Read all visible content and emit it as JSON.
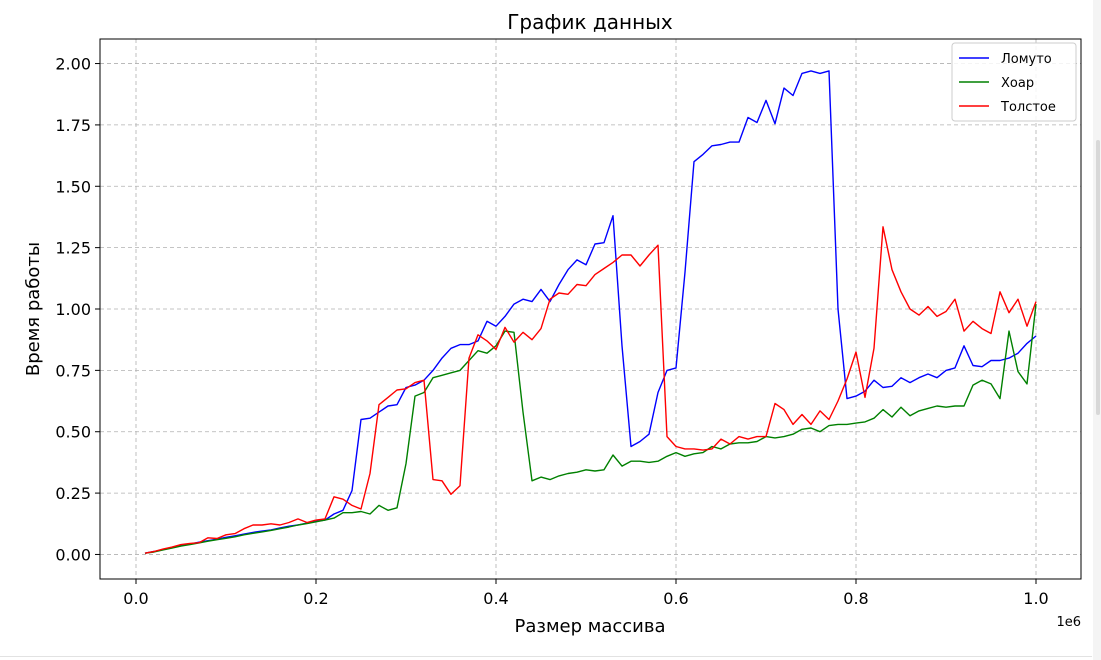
{
  "chart_data": {
    "type": "line",
    "title": "График данных",
    "xlabel": "Размер массива",
    "ylabel": "Время работы",
    "x_offset_label": "1e6",
    "xlim": [
      -0.04,
      1.05
    ],
    "ylim": [
      -0.1,
      2.1
    ],
    "x_ticks": [
      0.0,
      0.2,
      0.4,
      0.6,
      0.8,
      1.0
    ],
    "x_tick_labels": [
      "0.0",
      "0.2",
      "0.4",
      "0.6",
      "0.8",
      "1.0"
    ],
    "y_ticks": [
      0.0,
      0.25,
      0.5,
      0.75,
      1.0,
      1.25,
      1.5,
      1.75,
      2.0
    ],
    "y_tick_labels": [
      "0.00",
      "0.25",
      "0.50",
      "0.75",
      "1.00",
      "1.25",
      "1.50",
      "1.75",
      "2.00"
    ],
    "grid": true,
    "legend_position": "top-right",
    "x": [
      0.01,
      0.02,
      0.03,
      0.04,
      0.05,
      0.06,
      0.07,
      0.08,
      0.09,
      0.1,
      0.11,
      0.12,
      0.13,
      0.14,
      0.15,
      0.16,
      0.17,
      0.18,
      0.19,
      0.2,
      0.21,
      0.22,
      0.23,
      0.24,
      0.25,
      0.26,
      0.27,
      0.28,
      0.29,
      0.3,
      0.31,
      0.32,
      0.33,
      0.34,
      0.35,
      0.36,
      0.37,
      0.38,
      0.39,
      0.4,
      0.41,
      0.42,
      0.43,
      0.44,
      0.45,
      0.46,
      0.47,
      0.48,
      0.49,
      0.5,
      0.51,
      0.52,
      0.53,
      0.54,
      0.55,
      0.56,
      0.57,
      0.58,
      0.59,
      0.6,
      0.61,
      0.62,
      0.63,
      0.64,
      0.65,
      0.66,
      0.67,
      0.68,
      0.69,
      0.7,
      0.71,
      0.72,
      0.73,
      0.74,
      0.75,
      0.76,
      0.77,
      0.78,
      0.79,
      0.8,
      0.81,
      0.82,
      0.83,
      0.84,
      0.85,
      0.86,
      0.87,
      0.88,
      0.89,
      0.9,
      0.91,
      0.92,
      0.93,
      0.94,
      0.95,
      0.96,
      0.97,
      0.98,
      0.99,
      1.0
    ],
    "series": [
      {
        "name": "Ломуто",
        "color": "#0000ff",
        "values": [
          0.005,
          0.012,
          0.02,
          0.028,
          0.036,
          0.042,
          0.05,
          0.056,
          0.062,
          0.07,
          0.076,
          0.083,
          0.09,
          0.095,
          0.1,
          0.108,
          0.115,
          0.12,
          0.128,
          0.135,
          0.14,
          0.165,
          0.18,
          0.26,
          0.55,
          0.555,
          0.58,
          0.605,
          0.61,
          0.68,
          0.69,
          0.71,
          0.75,
          0.8,
          0.84,
          0.855,
          0.855,
          0.87,
          0.95,
          0.93,
          0.97,
          1.02,
          1.04,
          1.03,
          1.08,
          1.03,
          1.1,
          1.16,
          1.2,
          1.18,
          1.265,
          1.27,
          1.38,
          0.85,
          0.44,
          0.46,
          0.49,
          0.66,
          0.75,
          0.76,
          1.15,
          1.6,
          1.63,
          1.665,
          1.67,
          1.68,
          1.68,
          1.78,
          1.76,
          1.85,
          1.755,
          1.9,
          1.87,
          1.96,
          1.97,
          1.96,
          1.97,
          1.0,
          0.635,
          0.645,
          0.665,
          0.71,
          0.68,
          0.685,
          0.72,
          0.7,
          0.72,
          0.735,
          0.72,
          0.75,
          0.76,
          0.85,
          0.77,
          0.765,
          0.79,
          0.79,
          0.8,
          0.82,
          0.86,
          0.89
        ]
      },
      {
        "name": "Хоар",
        "color": "#008000",
        "values": [
          0.005,
          0.01,
          0.018,
          0.026,
          0.034,
          0.04,
          0.047,
          0.054,
          0.06,
          0.066,
          0.072,
          0.08,
          0.086,
          0.092,
          0.098,
          0.105,
          0.112,
          0.12,
          0.126,
          0.133,
          0.14,
          0.148,
          0.17,
          0.17,
          0.175,
          0.165,
          0.2,
          0.18,
          0.19,
          0.37,
          0.645,
          0.66,
          0.72,
          0.73,
          0.74,
          0.75,
          0.79,
          0.83,
          0.82,
          0.85,
          0.91,
          0.905,
          0.58,
          0.3,
          0.315,
          0.305,
          0.32,
          0.33,
          0.335,
          0.345,
          0.34,
          0.345,
          0.405,
          0.36,
          0.38,
          0.38,
          0.375,
          0.38,
          0.4,
          0.415,
          0.4,
          0.41,
          0.415,
          0.44,
          0.43,
          0.45,
          0.455,
          0.455,
          0.46,
          0.48,
          0.475,
          0.48,
          0.49,
          0.51,
          0.515,
          0.5,
          0.525,
          0.53,
          0.53,
          0.535,
          0.54,
          0.555,
          0.59,
          0.56,
          0.6,
          0.565,
          0.585,
          0.595,
          0.605,
          0.6,
          0.605,
          0.605,
          0.69,
          0.71,
          0.695,
          0.635,
          0.91,
          0.745,
          0.695,
          1.02
        ]
      },
      {
        "name": "Толстое",
        "color": "#ff0000",
        "values": [
          0.005,
          0.012,
          0.022,
          0.03,
          0.04,
          0.045,
          0.048,
          0.068,
          0.065,
          0.08,
          0.085,
          0.105,
          0.12,
          0.12,
          0.125,
          0.12,
          0.13,
          0.145,
          0.13,
          0.14,
          0.145,
          0.235,
          0.225,
          0.2,
          0.185,
          0.33,
          0.61,
          0.64,
          0.67,
          0.675,
          0.7,
          0.71,
          0.305,
          0.3,
          0.245,
          0.28,
          0.8,
          0.895,
          0.87,
          0.835,
          0.925,
          0.865,
          0.905,
          0.875,
          0.92,
          1.04,
          1.065,
          1.06,
          1.1,
          1.095,
          1.14,
          1.165,
          1.19,
          1.22,
          1.22,
          1.175,
          1.22,
          1.26,
          0.48,
          0.44,
          0.43,
          0.43,
          0.425,
          0.43,
          0.47,
          0.45,
          0.48,
          0.47,
          0.48,
          0.48,
          0.615,
          0.59,
          0.53,
          0.57,
          0.53,
          0.585,
          0.55,
          0.625,
          0.715,
          0.825,
          0.64,
          0.84,
          1.335,
          1.16,
          1.07,
          1.0,
          0.975,
          1.01,
          0.97,
          0.99,
          1.04,
          0.91,
          0.95,
          0.92,
          0.9,
          1.07,
          0.985,
          1.04,
          0.93,
          1.03
        ]
      }
    ]
  }
}
